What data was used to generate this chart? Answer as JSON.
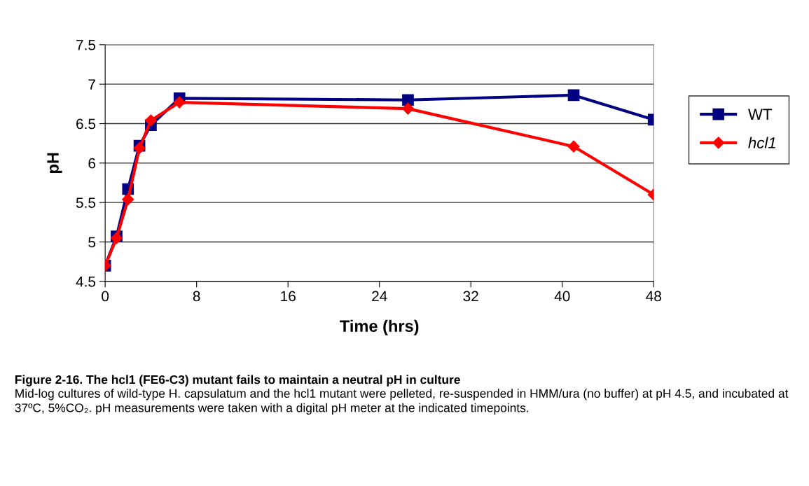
{
  "chart_data": {
    "type": "line",
    "xlabel": "Time (hrs)",
    "ylabel": "pH",
    "x": [
      0,
      1,
      2,
      3,
      4,
      6.5,
      26.5,
      41,
      48
    ],
    "series": [
      {
        "name": "WT",
        "color": "#000080",
        "marker": "square",
        "values": [
          4.7,
          5.07,
          5.67,
          6.22,
          6.48,
          6.82,
          6.8,
          6.86,
          6.55
        ]
      },
      {
        "name": "hcl1",
        "color": "#ff0000",
        "marker": "diamond",
        "values": [
          4.7,
          5.05,
          5.54,
          6.19,
          6.54,
          6.77,
          6.69,
          6.21,
          5.6
        ]
      }
    ],
    "xlim": [
      0,
      48
    ],
    "xticks": [
      0,
      8,
      16,
      24,
      32,
      40,
      48
    ],
    "ylim": [
      4.5,
      7.5
    ],
    "yticks": [
      4.5,
      5,
      5.5,
      6,
      6.5,
      7,
      7.5
    ],
    "grid": "y",
    "legend": "right",
    "line_style": "solid",
    "annotations": [
      "Figure 2-16. The hcl1 (FE6-C3) mutant fails to maintain a neutral pH in culture",
      "Mid-log cultures of wild-type H. capsulatum and the hcl1 mutant were pelleted, re-suspended in HMM/ura (no buffer) at pH 4.5, and incubated at 37ºC, 5%CO₂. pH measurements were taken with a digital pH meter at the indicated timepoints."
    ]
  }
}
